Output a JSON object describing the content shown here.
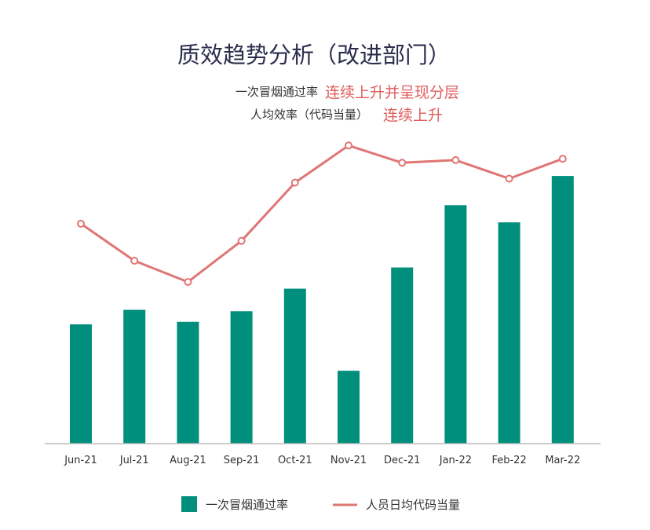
{
  "colors": {
    "bar": "#008f7c",
    "line": "#e07575",
    "axis": "#bbbbbb",
    "title": "#2d2d4e",
    "annotation_highlight": "#e05d5d"
  },
  "chart_data": {
    "type": "bar",
    "title": "质效趋势分析（改进部门）",
    "categories": [
      "Jun-21",
      "Jul-21",
      "Aug-21",
      "Sep-21",
      "Oct-21",
      "Nov-21",
      "Dec-21",
      "Jan-22",
      "Feb-22",
      "Mar-22"
    ],
    "series": [
      {
        "name": "一次冒烟通过率",
        "type": "bar",
        "values": [
          45,
          50.5,
          46,
          50,
          58.5,
          27.5,
          66.5,
          90,
          83.5,
          101
        ]
      },
      {
        "name": "人员日均代码当量",
        "type": "line",
        "values": [
          83,
          69,
          61,
          76.5,
          98.5,
          112.5,
          106,
          107,
          100,
          107.5
        ]
      }
    ],
    "ylim": [
      0,
      120
    ],
    "grid": false,
    "legend_position": "bottom",
    "annotations": [
      {
        "label": "一次冒烟通过率",
        "value": "连续上升并呈现分层"
      },
      {
        "label": "人均效率（代码当量）",
        "value": "连续上升"
      }
    ]
  }
}
